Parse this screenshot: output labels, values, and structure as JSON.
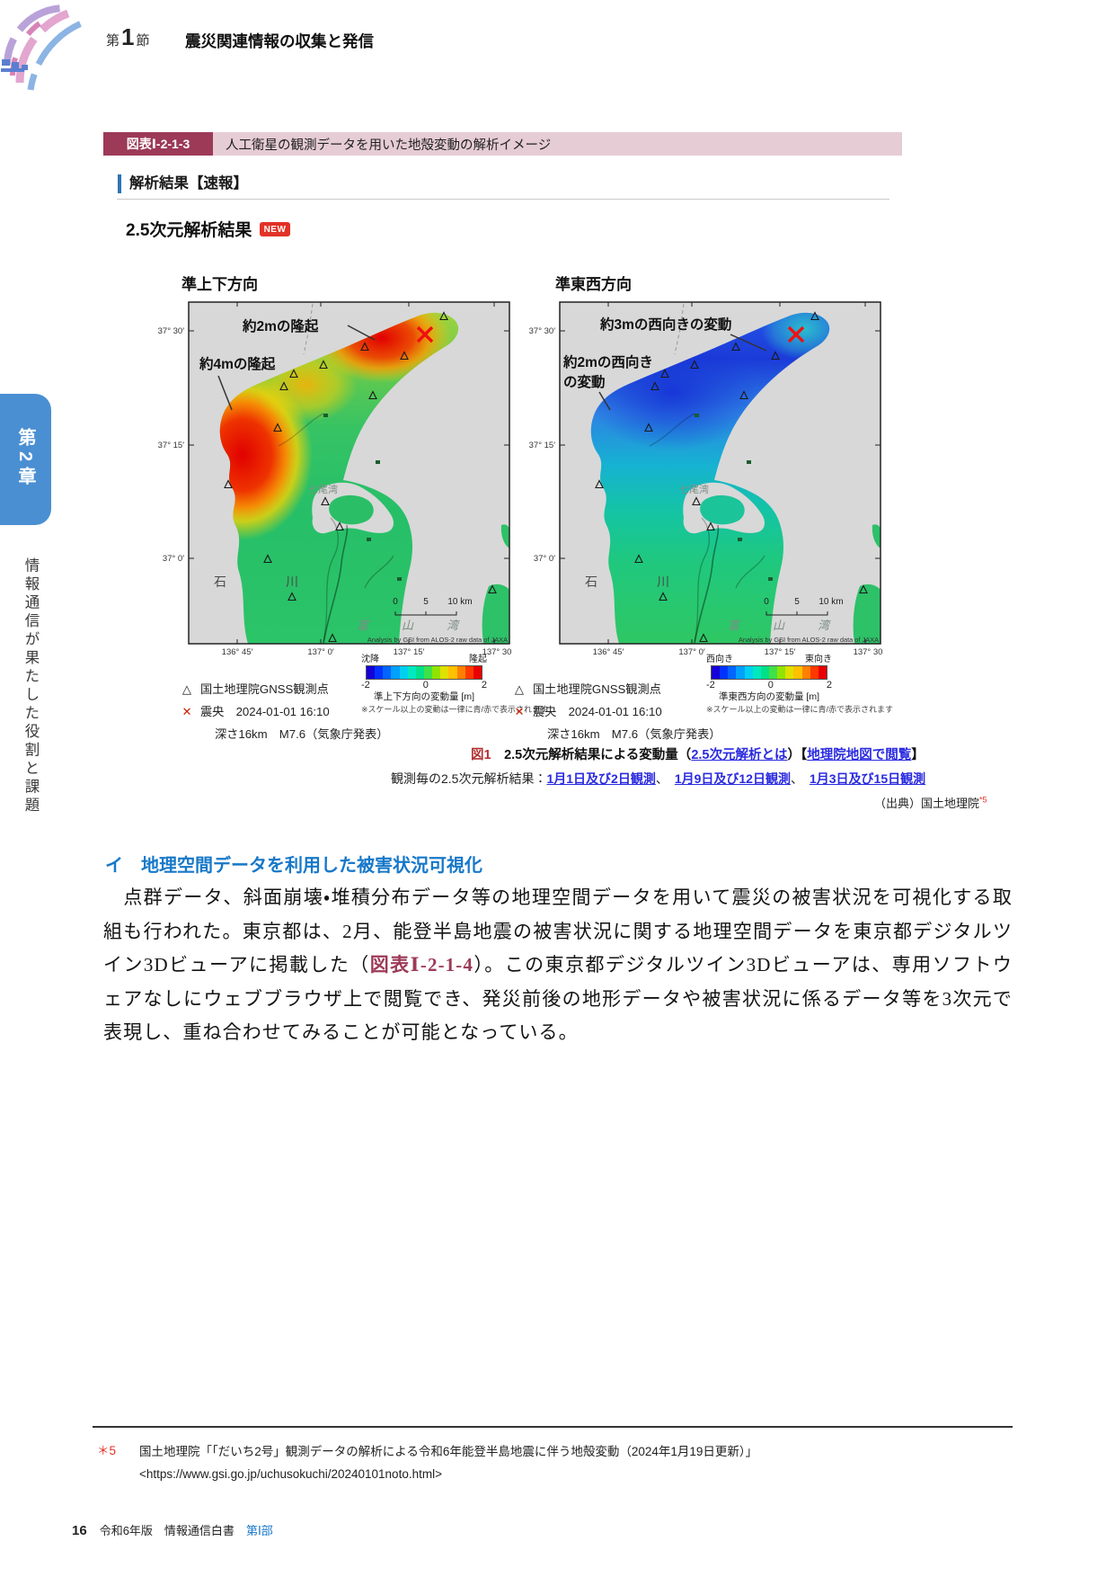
{
  "header": {
    "section_prefix": "第",
    "section_number": "1",
    "section_suffix": "節",
    "section_title": "震災関連情報の収集と発信"
  },
  "sidebar": {
    "chapter_tab": "第2章",
    "chapter_title": "情報通信が果たした役割と課題"
  },
  "figure": {
    "label": "図表Ⅰ-2-1-3",
    "title": "人工衛星の観測データを用いた地殻変動の解析イメージ",
    "panel_header": "解析結果【速報】",
    "result_heading": "2.5次元解析結果",
    "new_badge": "NEW",
    "map_shared": {
      "lat_ticks": [
        "37° 30′",
        "37° 15′",
        "37° 0′"
      ],
      "lon_ticks": [
        "136° 45′",
        "137° 0′",
        "137° 15′",
        "137° 30"
      ],
      "nanao_bay": "七尾湾",
      "pref_left": "石",
      "pref_right": "川",
      "toyama_bay": [
        "富",
        "山",
        "湾"
      ],
      "scale_ticks": [
        "0",
        "5",
        "10 km"
      ],
      "credit": "Analysis by GSI from ALOS-2 raw data of JAXA"
    },
    "maps": [
      {
        "title": "準上下方向",
        "annotations": [
          "約2mの隆起",
          "約4mの隆起"
        ],
        "colorbar": {
          "left": "沈降",
          "right": "隆起",
          "min": "-2",
          "mid": "0",
          "max": "2",
          "label": "準上下方向の変動量 [m]",
          "note": "※スケール以上の変動は一律に青/赤で表示されます"
        }
      },
      {
        "title": "準東西方向",
        "annotations": [
          "約3mの西向きの変動",
          "約2mの西向き",
          "の変動"
        ],
        "colorbar": {
          "left": "西向き",
          "right": "東向き",
          "min": "-2",
          "mid": "0",
          "max": "2",
          "label": "準東西方向の変動量 [m]",
          "note": "※スケール以上の変動は一律に青/赤で表示されます"
        }
      }
    ],
    "legend": {
      "gnss_symbol": "△",
      "gnss": "国土地理院GNSS観測点",
      "epi_symbol": "✕",
      "epi_label": "震央",
      "epi_time": "2024-01-01 16:10",
      "epi_detail": "深さ16km　M7.6（気象庁発表）"
    },
    "colorbar_colors": [
      "#1500d8",
      "#0032ff",
      "#0064ff",
      "#00a0ff",
      "#00d0f0",
      "#00e8c0",
      "#00e088",
      "#40e048",
      "#90e400",
      "#e0e000",
      "#ffc000",
      "#ff8000",
      "#ff3800",
      "#e80000"
    ],
    "caption": {
      "fig_no": "図1",
      "main": "　2.5次元解析結果による変動量（",
      "link_what": "2.5次元解析とは",
      "mid": "）【",
      "link_map": "地理院地図で閲覧",
      "end": "】",
      "line2_prefix": "観測毎の2.5次元解析結果：",
      "obs_links": [
        "1月1日及び2日観測",
        "1月9日及び12日観測",
        "1月3日及び15日観測"
      ],
      "obs_sep": "、　"
    },
    "source": "（出典）国土地理院",
    "source_ref": "*5"
  },
  "body": {
    "heading": "イ　地理空間データを利用した被害状況可視化",
    "p1": "　点群データ、斜面崩壊・堆積分布データ等の地理空間データを用いて震災の被害状況を可視化する取組も行われた。東京都は、2月、能登半島地震の被害状況に関する地理空間データを東京都デジタルツイン3Dビューアに掲載した（",
    "figref": "図表Ⅰ-2-1-4",
    "p2": "）。この東京都デジタルツイン3Dビューアは、専用ソフトウェアなしにウェブブラウザ上で閲覧でき、発災前後の地形データや被害状況に係るデータ等を3次元で表現し、重ね合わせてみることが可能となっている。"
  },
  "footnote": {
    "marker": "＊5",
    "text": "国土地理院「「だいち2号」観測データの解析による令和6年能登半島地震に伴う地殻変動（2024年1月19日更新）」",
    "url": "<https://www.gsi.go.jp/uchusokuchi/20240101noto.html>"
  },
  "footer": {
    "page_number": "16",
    "book": "令和6年版　情報通信白書",
    "part": "第Ⅰ部"
  },
  "colors": {
    "accent": "#9c3a58",
    "pink": "#e6ccd4",
    "heading_blue": "#1778c8",
    "link_blue": "#2a2ae0",
    "badge_red": "#e23227",
    "sidebar_blue": "#4a8fd2"
  }
}
